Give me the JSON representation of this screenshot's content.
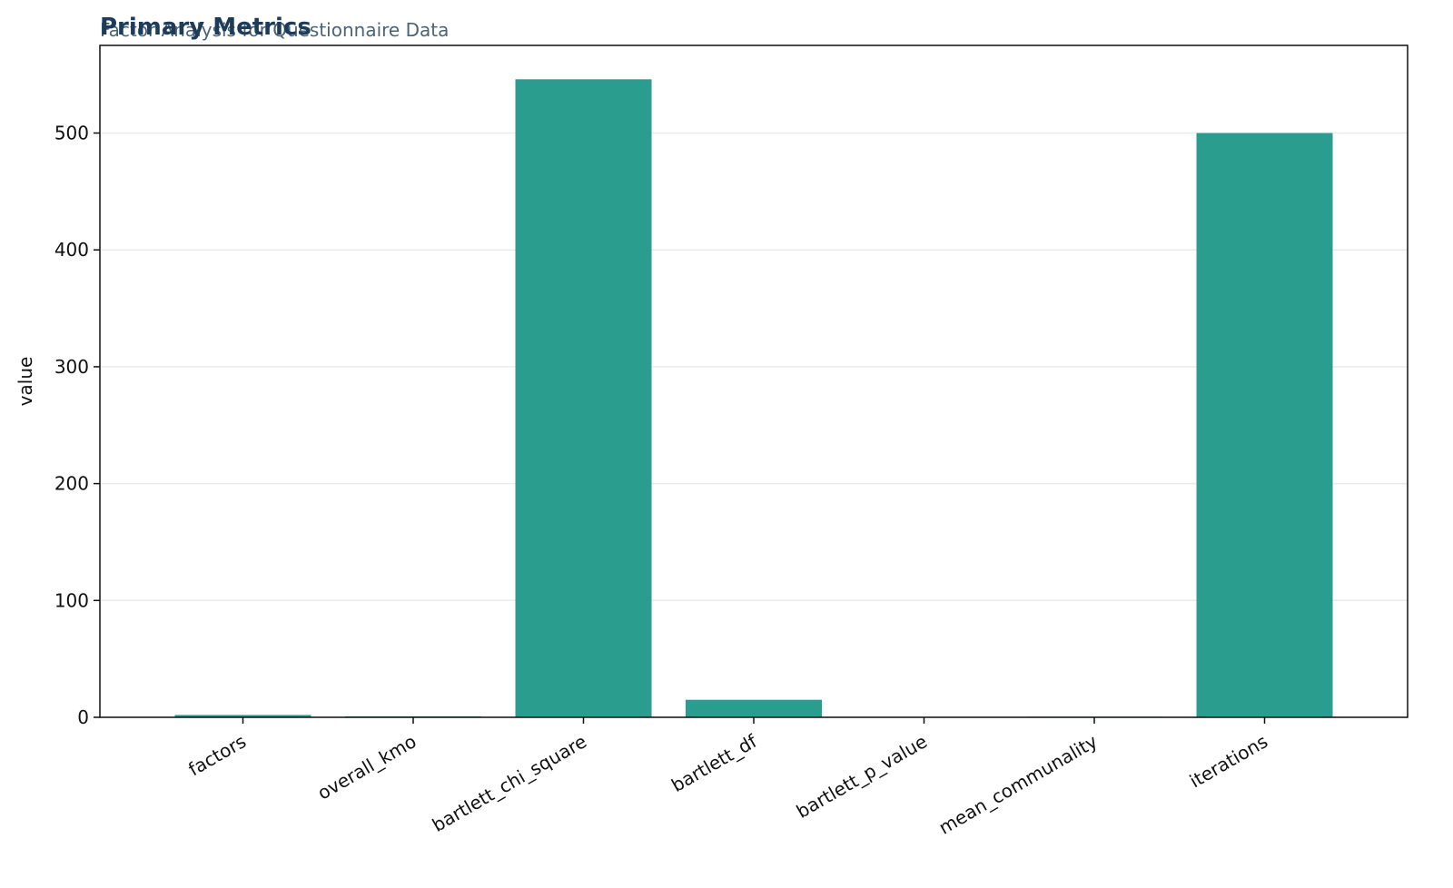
{
  "chart_data": {
    "type": "bar",
    "title": "Primary Metrics",
    "subtitle": "Factor Analysis for Questionnaire Data",
    "ylabel": "value",
    "categories": [
      "factors",
      "overall_kmo",
      "bartlett_chi_square",
      "bartlett_df",
      "bartlett_p_value",
      "mean_communality",
      "iterations"
    ],
    "values": [
      2,
      0.8,
      546,
      15,
      0,
      0.5,
      500
    ],
    "color": "#2a9d8f",
    "ylim": [
      0,
      575
    ],
    "yticks": [
      0,
      100,
      200,
      300,
      400,
      500
    ],
    "grid": true
  }
}
